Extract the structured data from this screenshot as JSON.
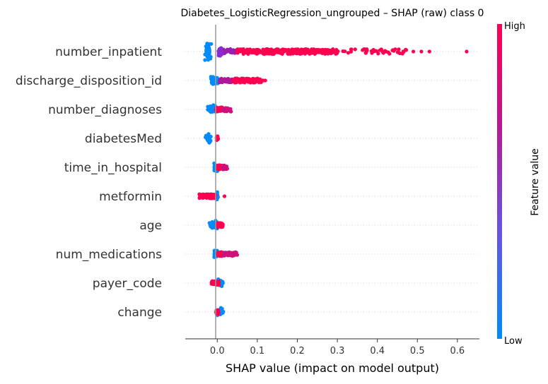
{
  "chart_data": {
    "type": "scatter",
    "title": "Diabetes_LogisticRegression_ungrouped – SHAP (raw) class 0",
    "xlabel": "SHAP value (impact on model output)",
    "ylabel": "",
    "xlim": [
      -0.08,
      0.655
    ],
    "xticks": [
      {
        "value": 0.0,
        "label": "0.0"
      },
      {
        "value": 0.1,
        "label": "0.1"
      },
      {
        "value": 0.2,
        "label": "0.2"
      },
      {
        "value": 0.3,
        "label": "0.3"
      },
      {
        "value": 0.4,
        "label": "0.4"
      },
      {
        "value": 0.5,
        "label": "0.5"
      },
      {
        "value": 0.6,
        "label": "0.6"
      }
    ],
    "grid": false,
    "colorbar": {
      "label": "Feature value",
      "high_label": "High",
      "low_label": "Low",
      "colors": [
        "#008bfb",
        "#6a52e0",
        "#c0138e",
        "#ff0051"
      ]
    },
    "features": [
      {
        "name": "number_inpatient",
        "blue": [
          -0.032,
          -0.015
        ],
        "red": [
          {
            "from": 0.005,
            "to": 0.05,
            "n": 40,
            "color": "#9a1fb0"
          },
          {
            "from": 0.05,
            "to": 0.3,
            "n": 260,
            "color": "#ff0051"
          },
          {
            "from": 0.3,
            "to": 0.48,
            "n": 45,
            "color": "#ff0051"
          }
        ],
        "outliers": [
          0.49,
          0.51,
          0.53,
          0.623
        ]
      },
      {
        "name": "discharge_disposition_id",
        "blue": [
          -0.018,
          0.006
        ],
        "red": [
          {
            "from": 0.005,
            "to": 0.04,
            "n": 30,
            "color": "#b0169a"
          },
          {
            "from": 0.04,
            "to": 0.11,
            "n": 120,
            "color": "#ff0051"
          }
        ],
        "outliers": [
          0.115,
          0.12
        ]
      },
      {
        "name": "number_diagnoses",
        "blue": [
          -0.025,
          -0.003
        ],
        "red": [
          {
            "from": -0.003,
            "to": 0.012,
            "n": 60,
            "color": "#ff0051"
          },
          {
            "from": 0.012,
            "to": 0.035,
            "n": 30,
            "color": "#d0107a"
          }
        ],
        "outliers": []
      },
      {
        "name": "diabetesMed",
        "blue": [
          -0.03,
          -0.015
        ],
        "red": [
          {
            "from": -0.002,
            "to": 0.002,
            "n": 25,
            "color": "#ff0051"
          }
        ],
        "outliers": []
      },
      {
        "name": "time_in_hospital",
        "blue": [
          -0.012,
          0.002
        ],
        "red": [
          {
            "from": 0.0,
            "to": 0.012,
            "n": 40,
            "color": "#ff0051"
          },
          {
            "from": 0.012,
            "to": 0.026,
            "n": 30,
            "color": "#d0107a"
          }
        ],
        "outliers": []
      },
      {
        "name": "metformin",
        "blue": [
          -0.002,
          0.002
        ],
        "red": [
          {
            "from": -0.045,
            "to": -0.005,
            "n": 80,
            "color": "#ff0051"
          }
        ],
        "outliers": [
          0.018
        ]
      },
      {
        "name": "age",
        "blue": [
          -0.022,
          0.0
        ],
        "red": [
          {
            "from": -0.002,
            "to": 0.014,
            "n": 50,
            "color": "#ff0051"
          }
        ],
        "outliers": []
      },
      {
        "name": "num_medications",
        "blue": [
          -0.012,
          0.002
        ],
        "red": [
          {
            "from": 0.0,
            "to": 0.015,
            "n": 40,
            "color": "#ff0051"
          },
          {
            "from": 0.015,
            "to": 0.05,
            "n": 40,
            "color": "#d0107a"
          }
        ],
        "outliers": []
      },
      {
        "name": "payer_code",
        "blue": [
          0.0,
          0.016
        ],
        "red": [
          {
            "from": -0.015,
            "to": 0.004,
            "n": 50,
            "color": "#ff0051"
          }
        ],
        "outliers": []
      },
      {
        "name": "change",
        "blue": [
          0.0,
          0.015
        ],
        "red": [
          {
            "from": -0.003,
            "to": 0.003,
            "n": 25,
            "color": "#ff0051"
          }
        ],
        "outliers": []
      }
    ]
  }
}
